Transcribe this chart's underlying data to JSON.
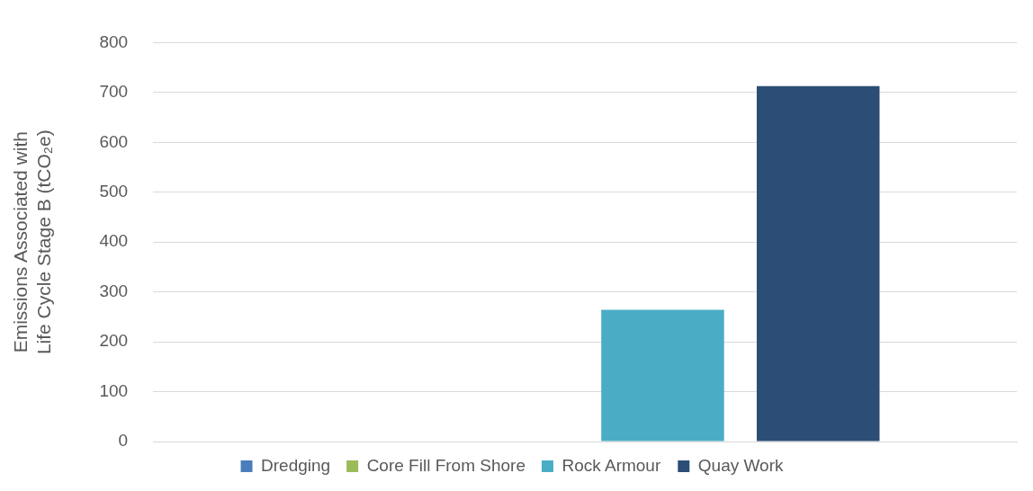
{
  "chart_data": {
    "type": "bar",
    "ylabel": "Emissions Associated with Life Cycle Stage B (tCO₂e)",
    "categories": [
      null
    ],
    "series": [
      {
        "name": "Dredging",
        "color": "#4a7ebb",
        "values": [
          0
        ]
      },
      {
        "name": "Core Fill From Shore",
        "color": "#9bbb59",
        "values": [
          0
        ]
      },
      {
        "name": "Rock Armour",
        "color": "#4bacc6",
        "values": [
          264
        ]
      },
      {
        "name": "Quay Work",
        "color": "#2c4d75",
        "values": [
          713
        ]
      }
    ],
    "ylim": [
      0,
      800
    ],
    "yticks": [
      0,
      100,
      200,
      300,
      400,
      500,
      600,
      700,
      800
    ],
    "grid": "y",
    "legend": "bottom"
  }
}
